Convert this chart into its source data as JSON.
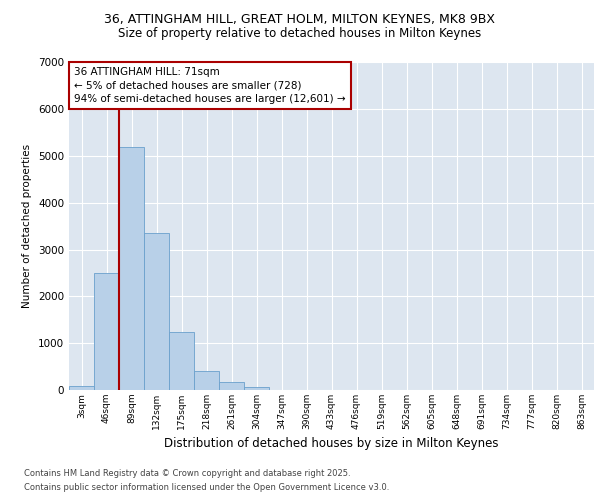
{
  "title_line1": "36, ATTINGHAM HILL, GREAT HOLM, MILTON KEYNES, MK8 9BX",
  "title_line2": "Size of property relative to detached houses in Milton Keynes",
  "xlabel": "Distribution of detached houses by size in Milton Keynes",
  "ylabel": "Number of detached properties",
  "categories": [
    "3sqm",
    "46sqm",
    "89sqm",
    "132sqm",
    "175sqm",
    "218sqm",
    "261sqm",
    "304sqm",
    "347sqm",
    "390sqm",
    "433sqm",
    "476sqm",
    "519sqm",
    "562sqm",
    "605sqm",
    "648sqm",
    "691sqm",
    "734sqm",
    "777sqm",
    "820sqm",
    "863sqm"
  ],
  "values": [
    75,
    2500,
    5200,
    3350,
    1250,
    400,
    175,
    60,
    10,
    5,
    3,
    2,
    1,
    1,
    0,
    0,
    0,
    0,
    0,
    0,
    0
  ],
  "bar_color": "#b8d0e8",
  "bar_edge_color": "#6aa0cc",
  "vline_color": "#aa0000",
  "annotation_text": "36 ATTINGHAM HILL: 71sqm\n← 5% of detached houses are smaller (728)\n94% of semi-detached houses are larger (12,601) →",
  "annotation_box_color": "#ffffff",
  "annotation_box_edge": "#aa0000",
  "ylim": [
    0,
    7000
  ],
  "yticks": [
    0,
    1000,
    2000,
    3000,
    4000,
    5000,
    6000,
    7000
  ],
  "background_color": "#dde6f0",
  "footer_line1": "Contains HM Land Registry data © Crown copyright and database right 2025.",
  "footer_line2": "Contains public sector information licensed under the Open Government Licence v3.0.",
  "fig_bg_color": "#ffffff"
}
